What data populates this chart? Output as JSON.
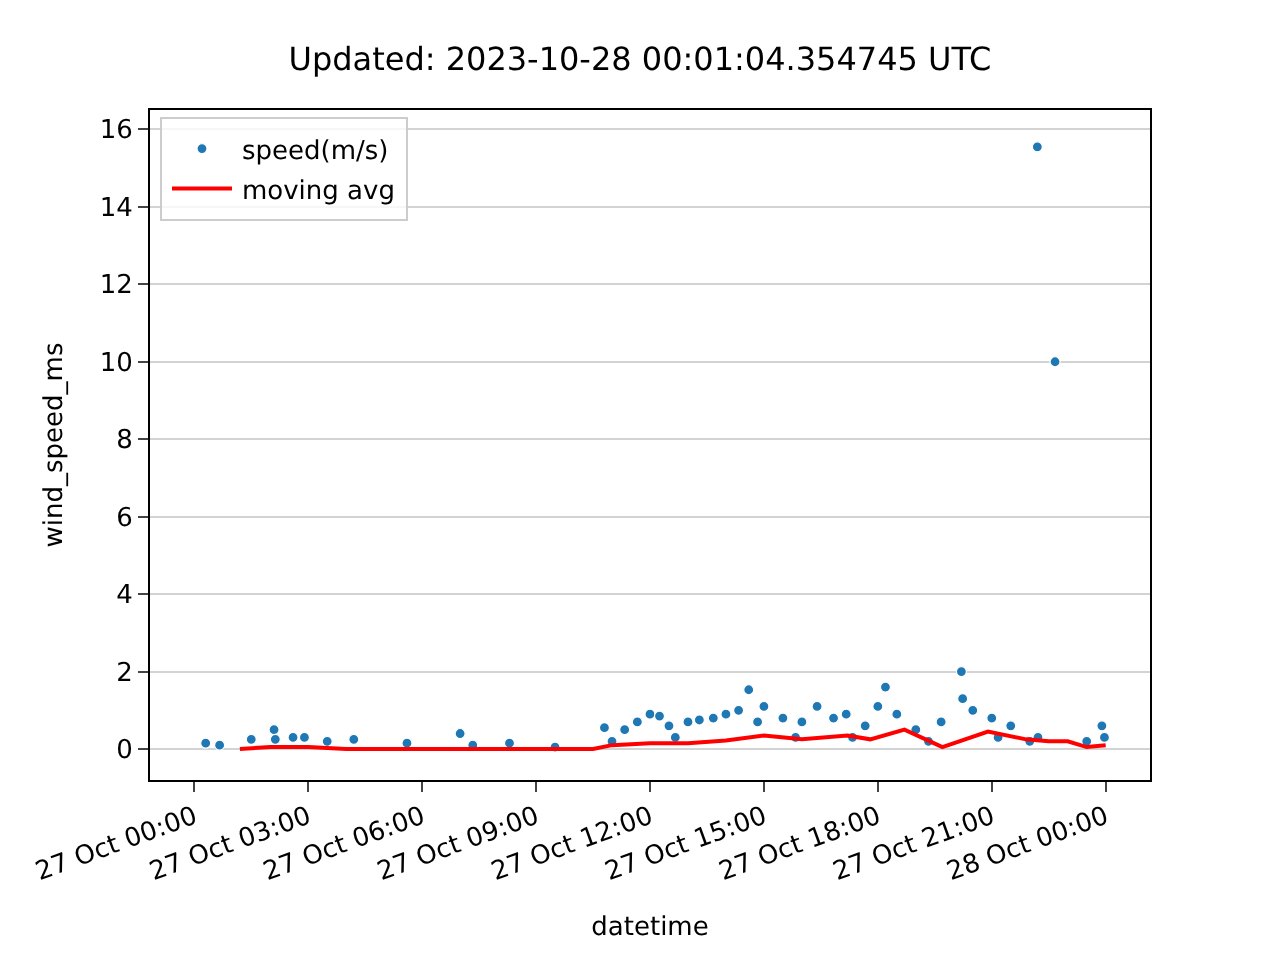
{
  "chart_data": {
    "type": "scatter",
    "title": "Updated: 2023-10-28 00:01:04.354745 UTC",
    "xlabel": "datetime",
    "ylabel": "wind_speed_ms",
    "xlim": [
      "2023-10-26T22:50",
      "2023-10-28T01:10"
    ],
    "xticks": [
      {
        "value": "2023-10-27T00:00",
        "label": "27 Oct 00:00"
      },
      {
        "value": "2023-10-27T03:00",
        "label": "27 Oct 03:00"
      },
      {
        "value": "2023-10-27T06:00",
        "label": "27 Oct 06:00"
      },
      {
        "value": "2023-10-27T09:00",
        "label": "27 Oct 09:00"
      },
      {
        "value": "2023-10-27T12:00",
        "label": "27 Oct 12:00"
      },
      {
        "value": "2023-10-27T15:00",
        "label": "27 Oct 15:00"
      },
      {
        "value": "2023-10-27T18:00",
        "label": "27 Oct 18:00"
      },
      {
        "value": "2023-10-27T21:00",
        "label": "27 Oct 21:00"
      },
      {
        "value": "2023-10-28T00:00",
        "label": "28 Oct 00:00"
      }
    ],
    "ylim": [
      -0.8,
      16.5
    ],
    "yticks": [
      0,
      2,
      4,
      6,
      8,
      10,
      12,
      14,
      16
    ],
    "grid": "y",
    "legend": "top left",
    "series": [
      {
        "name": "speed(m/s)",
        "marker": "circle",
        "color": "#1f77b4",
        "x": [
          "2023-10-27T00:18",
          "2023-10-27T00:40",
          "2023-10-27T01:30",
          "2023-10-27T02:06",
          "2023-10-27T02:08",
          "2023-10-27T02:36",
          "2023-10-27T02:54",
          "2023-10-27T03:30",
          "2023-10-27T04:12",
          "2023-10-27T05:36",
          "2023-10-27T07:00",
          "2023-10-27T07:20",
          "2023-10-27T08:18",
          "2023-10-27T09:30",
          "2023-10-27T10:48",
          "2023-10-27T11:00",
          "2023-10-27T11:20",
          "2023-10-27T11:40",
          "2023-10-27T12:00",
          "2023-10-27T12:15",
          "2023-10-27T12:30",
          "2023-10-27T12:40",
          "2023-10-27T13:00",
          "2023-10-27T13:18",
          "2023-10-27T13:40",
          "2023-10-27T14:00",
          "2023-10-27T14:20",
          "2023-10-27T14:36",
          "2023-10-27T14:50",
          "2023-10-27T15:00",
          "2023-10-27T15:30",
          "2023-10-27T15:50",
          "2023-10-27T16:00",
          "2023-10-27T16:24",
          "2023-10-27T16:50",
          "2023-10-27T17:10",
          "2023-10-27T17:20",
          "2023-10-27T17:40",
          "2023-10-27T18:00",
          "2023-10-27T18:12",
          "2023-10-27T18:30",
          "2023-10-27T19:00",
          "2023-10-27T19:20",
          "2023-10-27T19:40",
          "2023-10-27T20:12",
          "2023-10-27T20:14",
          "2023-10-27T20:30",
          "2023-10-27T21:00",
          "2023-10-27T21:10",
          "2023-10-27T21:30",
          "2023-10-27T22:00",
          "2023-10-27T22:12",
          "2023-10-27T22:13",
          "2023-10-27T22:40",
          "2023-10-27T23:30",
          "2023-10-27T23:54",
          "2023-10-27T23:58"
        ],
        "values": [
          0.15,
          0.1,
          0.25,
          0.5,
          0.25,
          0.3,
          0.3,
          0.2,
          0.25,
          0.15,
          0.4,
          0.1,
          0.15,
          0.05,
          0.55,
          0.2,
          0.5,
          0.7,
          0.9,
          0.85,
          0.6,
          0.3,
          0.7,
          0.75,
          0.8,
          0.9,
          1.0,
          1.53,
          0.7,
          1.1,
          0.8,
          0.3,
          0.7,
          1.1,
          0.8,
          0.9,
          0.3,
          0.6,
          1.1,
          1.6,
          0.9,
          0.5,
          0.2,
          0.7,
          2.0,
          1.3,
          1.0,
          0.8,
          0.3,
          0.6,
          0.2,
          15.55,
          0.3,
          10.0,
          0.2,
          0.6,
          0.3
        ]
      },
      {
        "name": "moving avg",
        "type": "line",
        "line_style": "solid",
        "color": "#ff0000",
        "x": [
          "2023-10-27T01:12",
          "2023-10-27T02:00",
          "2023-10-27T03:00",
          "2023-10-27T04:00",
          "2023-10-27T06:00",
          "2023-10-27T08:00",
          "2023-10-27T10:30",
          "2023-10-27T11:00",
          "2023-10-27T12:00",
          "2023-10-27T13:00",
          "2023-10-27T14:00",
          "2023-10-27T15:00",
          "2023-10-27T16:00",
          "2023-10-27T17:12",
          "2023-10-27T17:48",
          "2023-10-27T18:42",
          "2023-10-27T19:42",
          "2023-10-27T20:54",
          "2023-10-27T21:54",
          "2023-10-27T22:30",
          "2023-10-27T23:00",
          "2023-10-27T23:30",
          "2023-10-28T00:00"
        ],
        "values": [
          0.0,
          0.05,
          0.05,
          0.0,
          0.0,
          0.0,
          0.0,
          0.1,
          0.15,
          0.15,
          0.22,
          0.35,
          0.25,
          0.35,
          0.25,
          0.5,
          0.05,
          0.45,
          0.25,
          0.2,
          0.2,
          0.05,
          0.1
        ]
      }
    ]
  }
}
